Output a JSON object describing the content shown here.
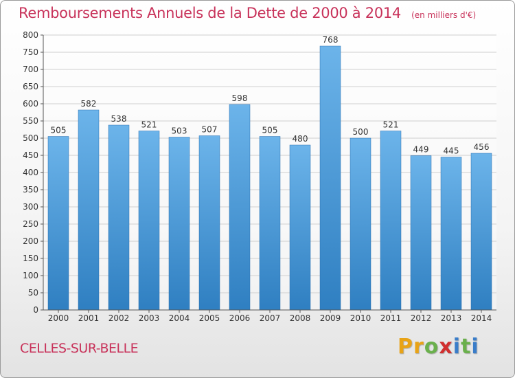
{
  "header": {
    "title": "Remboursements Annuels de la Dette de 2000 à 2014",
    "unit": "(en milliers d'€)"
  },
  "footer": {
    "commune": "CELLES-SUR-BELLE",
    "logo_letters": [
      "P",
      "r",
      "o",
      "x",
      "i",
      "t",
      "i"
    ]
  },
  "colors": {
    "title": "#c8325a",
    "bar_top": "#6cb4ea",
    "bar_bottom": "#2f7fc1",
    "logo": [
      "#e8a317",
      "#e8a317",
      "#6ab04c",
      "#d12f2f",
      "#3a7dc9",
      "#6ab04c",
      "#3a7dc9"
    ]
  },
  "chart_data": {
    "type": "bar",
    "categories": [
      "2000",
      "2001",
      "2002",
      "2003",
      "2004",
      "2005",
      "2006",
      "2007",
      "2008",
      "2009",
      "2010",
      "2011",
      "2012",
      "2013",
      "2014"
    ],
    "values": [
      505,
      582,
      538,
      521,
      503,
      507,
      598,
      505,
      480,
      768,
      500,
      521,
      449,
      445,
      456
    ],
    "ylim": [
      0,
      800
    ],
    "ytick_step": 50,
    "grid": true
  }
}
